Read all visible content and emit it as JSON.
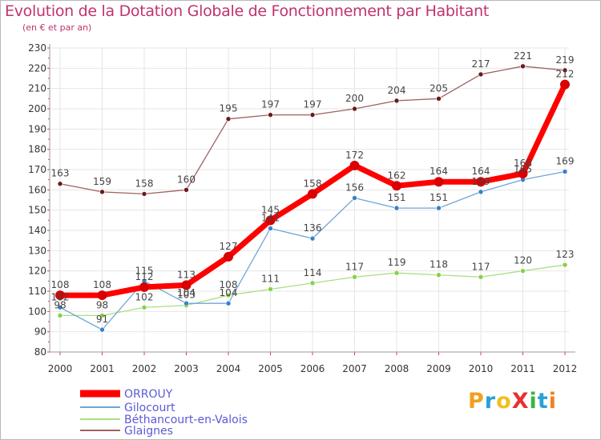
{
  "title": "Evolution de la Dotation Globale de Fonctionnement par Habitant",
  "subtitle": "(en € et par an)",
  "logo": {
    "text": "ProXiti",
    "letters": [
      "P",
      "r",
      "o",
      "X",
      "i",
      "t",
      "i"
    ],
    "colors": [
      "#f0a020",
      "#2aa0d8",
      "#f0c020",
      "#e83030",
      "#40b040",
      "#2aa0d8",
      "#f08020"
    ]
  },
  "chart_data": {
    "type": "line",
    "title": "Evolution de la Dotation Globale de Fonctionnement par Habitant",
    "subtitle": "(en € et par an)",
    "xlabel": "",
    "ylabel": "",
    "x": [
      "2000",
      "2001",
      "2002",
      "2003",
      "2004",
      "2005",
      "2006",
      "2007",
      "2008",
      "2009",
      "2010",
      "2011",
      "2012"
    ],
    "ylim": [
      80,
      230
    ],
    "yticks": [
      "80",
      "90",
      "100",
      "110",
      "120",
      "130",
      "140",
      "150",
      "160",
      "170",
      "180",
      "190",
      "200",
      "210",
      "220",
      "230"
    ],
    "grid": true,
    "legend_position": "bottom-left",
    "series": [
      {
        "name": "ORROUY",
        "color": "#ff0000",
        "marker": "#d80000",
        "width": 7,
        "values": [
          108,
          108,
          112,
          113,
          127,
          145,
          158,
          172,
          162,
          164,
          164,
          168,
          212
        ],
        "labels": [
          "108",
          "108",
          "112",
          "113",
          "127",
          "145",
          "158",
          "172",
          "162",
          "164",
          "164",
          "168",
          "212"
        ]
      },
      {
        "name": "Gilocourt",
        "color": "#6ea6d8",
        "marker": "#3a7fc8",
        "width": 1.3,
        "values": [
          102,
          91,
          115,
          104,
          104,
          141,
          136,
          156,
          151,
          151,
          159,
          165,
          169
        ],
        "labels": [
          "102",
          "91",
          "115",
          "104",
          "104",
          "141",
          "136",
          "156",
          "151",
          "151",
          "159",
          "165",
          "169"
        ]
      },
      {
        "name": "Béthancourt-en-Valois",
        "color": "#a8e080",
        "marker": "#88d048",
        "width": 1.3,
        "values": [
          98,
          98,
          102,
          103,
          108,
          111,
          114,
          117,
          119,
          118,
          117,
          120,
          123
        ],
        "labels": [
          "98",
          "98",
          "102",
          "103",
          "108",
          "111",
          "114",
          "117",
          "119",
          "118",
          "117",
          "120",
          "123"
        ]
      },
      {
        "name": "Glaignes",
        "color": "#a06060",
        "marker": "#6a1a1a",
        "width": 1.3,
        "values": [
          163,
          159,
          158,
          160,
          195,
          197,
          197,
          200,
          204,
          205,
          217,
          221,
          219
        ],
        "labels": [
          "163",
          "159",
          "158",
          "160",
          "195",
          "197",
          "197",
          "200",
          "204",
          "205",
          "217",
          "221",
          "219"
        ]
      }
    ]
  }
}
